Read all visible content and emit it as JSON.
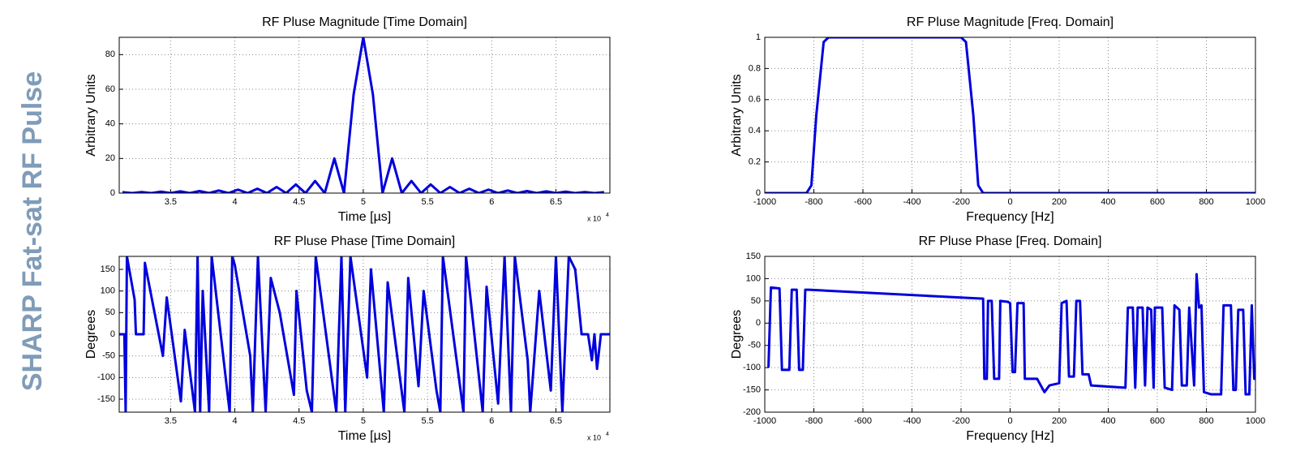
{
  "title": "SHARP Fat-sat RF Pulse",
  "chart_data": [
    {
      "type": "line",
      "title": "RF Pluse Magnitude [Time Domain]",
      "xlabel": "Time [µs]",
      "ylabel": "Arbitrary Units",
      "xlabel_multiplier": "x 10",
      "xlabel_multiplier_power": 4,
      "color": "#0000dd",
      "grid": true,
      "xlim": [
        31000,
        69200
      ],
      "ylim": [
        0,
        90
      ],
      "xticks": [
        {
          "value": 35000,
          "label": "3.5"
        },
        {
          "value": 40000,
          "label": "4"
        },
        {
          "value": 45000,
          "label": "4.5"
        },
        {
          "value": 50000,
          "label": "5"
        },
        {
          "value": 55000,
          "label": "5.5"
        },
        {
          "value": 60000,
          "label": "6"
        },
        {
          "value": 65000,
          "label": "6.5"
        }
      ],
      "yticks": [
        0,
        20,
        40,
        60,
        80
      ],
      "x": [
        31250,
        32000,
        32750,
        33500,
        34250,
        35000,
        35750,
        36500,
        37250,
        38000,
        38750,
        39500,
        40250,
        41000,
        41750,
        42500,
        43250,
        44000,
        44750,
        45500,
        46250,
        47000,
        47750,
        48500,
        49250,
        50000,
        50750,
        51500,
        52250,
        53000,
        53750,
        54500,
        55250,
        56000,
        56750,
        57500,
        58250,
        59000,
        59750,
        60500,
        61250,
        62000,
        62750,
        63500,
        64250,
        65000,
        65750,
        66500,
        67250,
        68000,
        68750
      ],
      "values": [
        0.5,
        0,
        0.6,
        0,
        0.8,
        0,
        1,
        0,
        1.2,
        0,
        1.5,
        0,
        2,
        0,
        2.5,
        0,
        3.5,
        0,
        5,
        0,
        7,
        0,
        20,
        0,
        57,
        90,
        57,
        0,
        20,
        0,
        7,
        0,
        5,
        0,
        3.5,
        0,
        2.5,
        0,
        2,
        0,
        1.5,
        0,
        1.2,
        0,
        1,
        0,
        0.8,
        0,
        0.6,
        0,
        0.5
      ]
    },
    {
      "type": "line",
      "title": "RF Pluse Phase [Time Domain]",
      "xlabel": "Time [µs]",
      "ylabel": "Degrees",
      "xlabel_multiplier": "x 10",
      "xlabel_multiplier_power": 4,
      "color": "#0000dd",
      "grid": true,
      "xlim": [
        31000,
        69200
      ],
      "ylim": [
        -180,
        180
      ],
      "xticks": [
        {
          "value": 35000,
          "label": "3.5"
        },
        {
          "value": 40000,
          "label": "4"
        },
        {
          "value": 45000,
          "label": "4.5"
        },
        {
          "value": 50000,
          "label": "5"
        },
        {
          "value": 55000,
          "label": "5.5"
        },
        {
          "value": 60000,
          "label": "6"
        },
        {
          "value": 65000,
          "label": "6.5"
        }
      ],
      "yticks": [
        -150,
        -100,
        -50,
        0,
        50,
        100,
        150
      ],
      "x": [
        31000,
        31400,
        31500,
        31600,
        32200,
        32300,
        32900,
        33000,
        34400,
        34700,
        35800,
        36100,
        36900,
        37100,
        37300,
        37500,
        38000,
        38200,
        39600,
        39800,
        40000,
        41200,
        41400,
        41800,
        42400,
        42800,
        43500,
        44600,
        44800,
        45600,
        46000,
        46300,
        47900,
        48300,
        48600,
        49000,
        50300,
        50600,
        51600,
        51900,
        53200,
        53500,
        54300,
        54700,
        55700,
        56000,
        56200,
        57800,
        58000,
        59300,
        59600,
        60500,
        61000,
        61500,
        61800,
        62800,
        63000,
        63700,
        64600,
        65000,
        65500,
        66000,
        66500,
        67000,
        67500,
        67800,
        68000,
        68200,
        68500,
        69200
      ],
      "values": [
        0,
        0,
        -180,
        180,
        80,
        0,
        0,
        165,
        -50,
        85,
        -155,
        10,
        -180,
        180,
        -180,
        100,
        -180,
        180,
        -180,
        180,
        160,
        -50,
        -180,
        180,
        -180,
        130,
        50,
        -140,
        100,
        -130,
        -180,
        180,
        -180,
        180,
        -180,
        180,
        -100,
        150,
        -180,
        120,
        -180,
        130,
        -120,
        100,
        -130,
        -180,
        180,
        -180,
        180,
        -180,
        110,
        -160,
        180,
        -180,
        180,
        -60,
        -180,
        100,
        -130,
        180,
        -180,
        180,
        150,
        0,
        0,
        -60,
        0,
        -80,
        0,
        0
      ]
    },
    {
      "type": "line",
      "title": "RF Pluse Magnitude [Freq. Domain]",
      "xlabel": "Frequency [Hz]",
      "ylabel": "Arbitrary Units",
      "color": "#0000dd",
      "grid": true,
      "xlim": [
        -1000,
        1000
      ],
      "ylim": [
        0,
        1
      ],
      "xticks": [
        -1000,
        -800,
        -600,
        -400,
        -200,
        0,
        200,
        400,
        600,
        800,
        1000
      ],
      "yticks": [
        0,
        0.2,
        0.4,
        0.6,
        0.8,
        1
      ],
      "x": [
        -1000,
        -830,
        -810,
        -790,
        -760,
        -740,
        -200,
        -180,
        -150,
        -130,
        -110,
        1000
      ],
      "values": [
        0,
        0,
        0.05,
        0.5,
        0.97,
        1,
        1,
        0.97,
        0.5,
        0.05,
        0,
        0
      ]
    },
    {
      "type": "line",
      "title": "RF Pluse Phase [Freq. Domain]",
      "xlabel": "Frequency [Hz]",
      "ylabel": "Degrees",
      "color": "#0000dd",
      "grid": true,
      "xlim": [
        -1000,
        1000
      ],
      "ylim": [
        -200,
        150
      ],
      "xticks": [
        -1000,
        -800,
        -600,
        -400,
        -200,
        0,
        200,
        400,
        600,
        800,
        1000
      ],
      "yticks": [
        -200,
        -150,
        -100,
        -50,
        0,
        50,
        100,
        150
      ],
      "x": [
        -985,
        -975,
        -940,
        -930,
        -900,
        -890,
        -870,
        -860,
        -845,
        -835,
        -820,
        -110,
        -105,
        -95,
        -90,
        -75,
        -65,
        -45,
        -40,
        -10,
        0,
        10,
        20,
        30,
        55,
        60,
        110,
        140,
        160,
        200,
        210,
        230,
        240,
        260,
        270,
        285,
        295,
        320,
        330,
        470,
        480,
        500,
        510,
        520,
        540,
        550,
        560,
        575,
        585,
        590,
        620,
        630,
        660,
        670,
        690,
        700,
        720,
        730,
        750,
        760,
        770,
        780,
        790,
        820,
        860,
        870,
        900,
        910,
        920,
        930,
        950,
        960,
        975,
        985,
        995,
        1000
      ],
      "values": [
        -100,
        80,
        78,
        -105,
        -105,
        75,
        75,
        -105,
        -105,
        75,
        75,
        55,
        -125,
        -125,
        50,
        50,
        -125,
        -125,
        50,
        48,
        45,
        -110,
        -110,
        45,
        45,
        -125,
        -125,
        -155,
        -140,
        -135,
        45,
        50,
        -120,
        -120,
        50,
        50,
        -115,
        -115,
        -140,
        -145,
        35,
        35,
        -145,
        35,
        35,
        -140,
        35,
        30,
        -145,
        35,
        35,
        -145,
        -150,
        40,
        30,
        -140,
        -140,
        35,
        -140,
        110,
        35,
        40,
        -155,
        -160,
        -160,
        40,
        40,
        -150,
        -150,
        30,
        30,
        -160,
        -160,
        40,
        -125,
        -125
      ]
    }
  ]
}
